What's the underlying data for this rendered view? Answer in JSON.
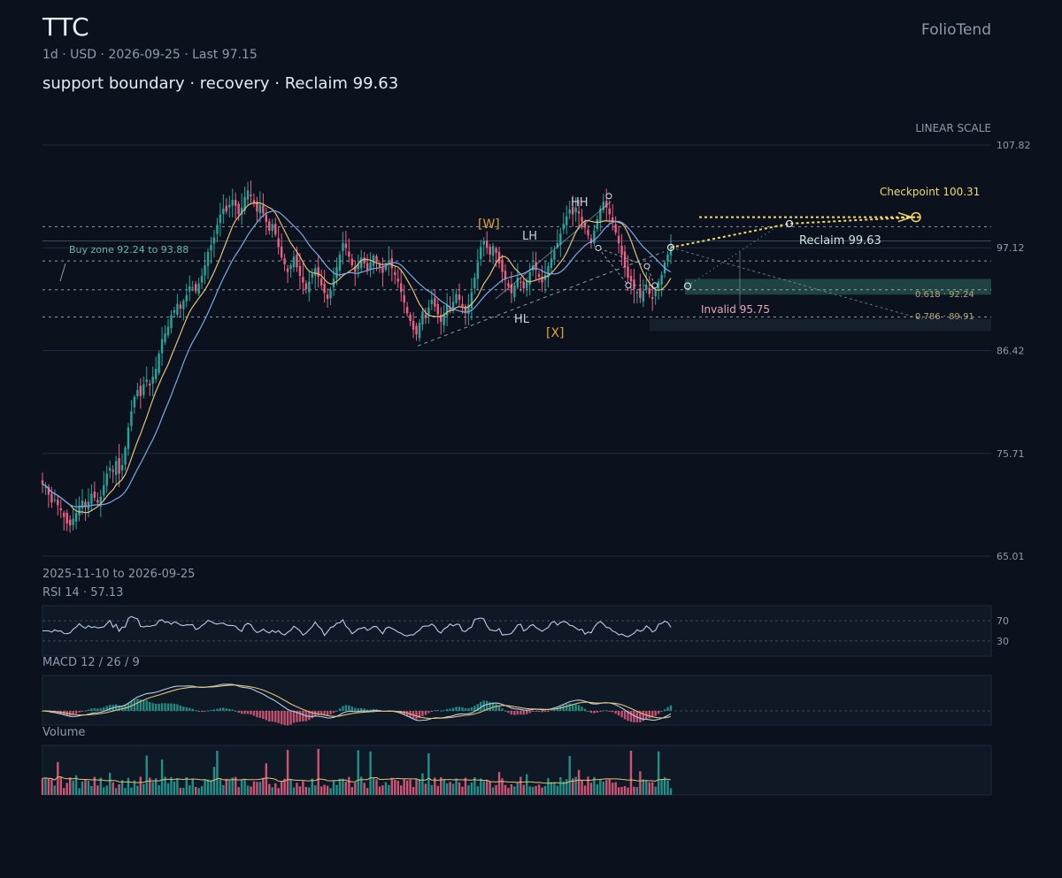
{
  "header": {
    "ticker": "TTC",
    "meta": "1d · USD · 2026-09-25 · Last 97.15",
    "headline": "support boundary · recovery · Reclaim 99.63",
    "brand": "FolioTend",
    "scale_label": "LINEAR SCALE"
  },
  "footer": {
    "date_range": "2025-11-10 to 2026-09-25"
  },
  "panels": {
    "rsi_label": "RSI 14 · 57.13",
    "rsi_levels": [
      "70",
      "30"
    ],
    "macd_label": "MACD 12 / 26 / 9",
    "volume_label": "Volume"
  },
  "colors": {
    "background": "#0b121d",
    "up": "#26a69a",
    "down": "#ef5f83",
    "ma_fast": "#e3c07a",
    "ma_slow": "#7fa6e6",
    "accent_yellow": "#f2d96a",
    "zone_green": "#2f6b5f",
    "muted": "#8e9aab"
  },
  "chart_data": {
    "type": "candlestick",
    "y_axis": {
      "ticks": [
        "107.82",
        "97.12",
        "86.42",
        "75.71",
        "65.01"
      ],
      "ylim": [
        65.01,
        107.82
      ],
      "scale": "linear"
    },
    "x_range": [
      "2025-11-10",
      "2026-09-25"
    ],
    "last_price": 97.15,
    "close_series": [
      72.5,
      72.2,
      71.4,
      70.6,
      70.9,
      70.3,
      69.8,
      69.1,
      68.4,
      68.2,
      68.9,
      69.5,
      70.3,
      70.8,
      70.1,
      70.7,
      71.5,
      71.1,
      70.6,
      71.2,
      72.4,
      73.6,
      74.2,
      73.8,
      74.9,
      73.6,
      74.5,
      76.3,
      78.4,
      80.1,
      81.6,
      82.3,
      81.7,
      82.9,
      83.4,
      82.8,
      83.7,
      84.5,
      86.1,
      87.6,
      88.2,
      88.9,
      90.1,
      90.6,
      91.3,
      90.8,
      91.6,
      92.2,
      93.1,
      93.0,
      92.6,
      93.4,
      94.2,
      95.3,
      96.7,
      97.4,
      98.2,
      99.5,
      100.6,
      101.2,
      100.9,
      101.6,
      102.1,
      101.5,
      100.6,
      101.3,
      102.4,
      103.1,
      102.5,
      101.8,
      100.9,
      101.6,
      100.7,
      99.8,
      98.9,
      99.6,
      98.5,
      97.2,
      96.1,
      95.4,
      94.6,
      95.3,
      96.2,
      95.1,
      94.2,
      93.5,
      92.8,
      93.6,
      94.4,
      95.0,
      94.1,
      93.2,
      92.4,
      91.8,
      92.7,
      93.9,
      95.1,
      96.4,
      97.6,
      97.1,
      96.2,
      95.3,
      94.6,
      95.4,
      96.1,
      95.5,
      94.8,
      95.6,
      96.3,
      95.7,
      95.1,
      94.5,
      95.2,
      95.8,
      95.0,
      94.3,
      93.6,
      92.5,
      91.4,
      90.3,
      89.5,
      88.6,
      88.1,
      89.3,
      90.5,
      89.8,
      90.9,
      91.7,
      91.0,
      90.2,
      89.4,
      90.3,
      91.2,
      90.6,
      91.5,
      92.3,
      91.7,
      91.0,
      90.3,
      91.2,
      92.5,
      94.0,
      95.6,
      97.2,
      97.8,
      97.1,
      96.4,
      97.3,
      96.6,
      95.5,
      94.6,
      93.8,
      93.1,
      92.4,
      93.2,
      94.0,
      93.5,
      92.9,
      93.7,
      94.6,
      95.3,
      94.8,
      94.1,
      93.5,
      94.3,
      95.2,
      96.0,
      96.8,
      97.6,
      98.6,
      99.6,
      100.4,
      101.1,
      100.6,
      101.3,
      100.7,
      99.8,
      99.2,
      98.4,
      97.6,
      98.9,
      100.1,
      101.2,
      101.9,
      101.3,
      100.6,
      99.8,
      98.7,
      97.6,
      96.4,
      95.1,
      94.0,
      93.6,
      92.8,
      92.5,
      91.9,
      92.6,
      93.2,
      92.3,
      91.8,
      92.7,
      93.6,
      94.3,
      95.6,
      96.4,
      97.15
    ],
    "annotations": {
      "buy_zone": "Buy zone 92.24 to 93.88",
      "checkpoint": "Checkpoint 100.31",
      "reclaim": "Reclaim 99.63",
      "invalid": "Invalid 95.75",
      "fib_618": "0.618 · 92.24",
      "fib_786": "0.786 · 89.91",
      "wave_w": "[W]",
      "wave_x": "[X]",
      "hh": "HH",
      "lh": "LH",
      "hl": "HL"
    },
    "levels": {
      "checkpoint": 100.31,
      "reclaim": 99.63,
      "invalid": 95.75,
      "fib_618": 92.24,
      "fib_786": 89.91,
      "buy_zone": [
        92.24,
        93.88
      ]
    },
    "rsi": {
      "last": 57.13,
      "upper": 70,
      "lower": 30
    },
    "macd": {
      "fast": 12,
      "slow": 26,
      "signal": 9
    }
  }
}
